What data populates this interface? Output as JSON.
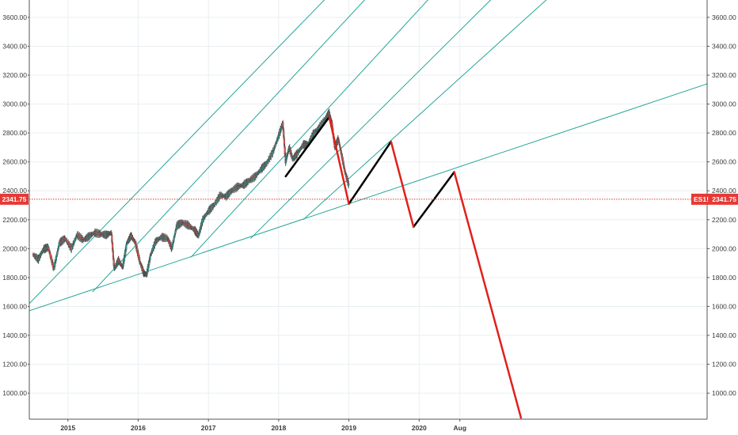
{
  "chart_data": {
    "type": "line",
    "title": "",
    "symbol": "ES1!",
    "last_price": "2341.75",
    "price_tag_left": "2341.75",
    "price_tag_right": "2341.75",
    "ylim": [
      820,
      3720
    ],
    "xlim": [
      2014.45,
      2024.1
    ],
    "y_ticks": [
      "1000.00",
      "1200.00",
      "1400.00",
      "1600.00",
      "1800.00",
      "2000.00",
      "2200.00",
      "2400.00",
      "2600.00",
      "2800.00",
      "3000.00",
      "3200.00",
      "3400.00",
      "3600.00"
    ],
    "x_ticks": [
      {
        "label": "2015",
        "x": 2015.0
      },
      {
        "label": "2016",
        "x": 2016.0
      },
      {
        "label": "2017",
        "x": 2017.0
      },
      {
        "label": "2018",
        "x": 2018.0
      },
      {
        "label": "2019",
        "x": 2019.0
      },
      {
        "label": "2020",
        "x": 2020.0
      },
      {
        "label": "Aug",
        "x": 2020.58
      }
    ],
    "grid": true,
    "colors": {
      "up": "#26a69a",
      "down": "#ef5350",
      "fan": "#26a69a",
      "projection_down": "#e0201b",
      "projection_up": "#000000",
      "price_line": "#e53935",
      "grid": "#e9eff2"
    },
    "price_series": {
      "name": "ES1!",
      "points": [
        [
          2014.5,
          1960
        ],
        [
          2014.58,
          1925
        ],
        [
          2014.65,
          1995
        ],
        [
          2014.72,
          2010
        ],
        [
          2014.8,
          1860
        ],
        [
          2014.88,
          2040
        ],
        [
          2014.96,
          2070
        ],
        [
          2015.05,
          2000
        ],
        [
          2015.13,
          2095
        ],
        [
          2015.22,
          2060
        ],
        [
          2015.3,
          2085
        ],
        [
          2015.38,
          2110
        ],
        [
          2015.47,
          2100
        ],
        [
          2015.55,
          2095
        ],
        [
          2015.62,
          2110
        ],
        [
          2015.66,
          1860
        ],
        [
          2015.72,
          1920
        ],
        [
          2015.78,
          1870
        ],
        [
          2015.84,
          2040
        ],
        [
          2015.9,
          2090
        ],
        [
          2015.96,
          2040
        ],
        [
          2016.03,
          1900
        ],
        [
          2016.08,
          1830
        ],
        [
          2016.12,
          1820
        ],
        [
          2016.18,
          1960
        ],
        [
          2016.25,
          2050
        ],
        [
          2016.33,
          2080
        ],
        [
          2016.42,
          2070
        ],
        [
          2016.48,
          2000
        ],
        [
          2016.55,
          2160
        ],
        [
          2016.63,
          2180
        ],
        [
          2016.72,
          2160
        ],
        [
          2016.8,
          2130
        ],
        [
          2016.86,
          2090
        ],
        [
          2016.92,
          2200
        ],
        [
          2017.0,
          2260
        ],
        [
          2017.08,
          2300
        ],
        [
          2017.17,
          2370
        ],
        [
          2017.25,
          2360
        ],
        [
          2017.33,
          2400
        ],
        [
          2017.42,
          2430
        ],
        [
          2017.5,
          2440
        ],
        [
          2017.58,
          2470
        ],
        [
          2017.67,
          2500
        ],
        [
          2017.75,
          2550
        ],
        [
          2017.83,
          2590
        ],
        [
          2017.92,
          2670
        ],
        [
          2018.0,
          2780
        ],
        [
          2018.06,
          2870
        ],
        [
          2018.1,
          2600
        ],
        [
          2018.15,
          2700
        ],
        [
          2018.2,
          2620
        ],
        [
          2018.27,
          2660
        ],
        [
          2018.35,
          2720
        ],
        [
          2018.42,
          2720
        ],
        [
          2018.5,
          2800
        ],
        [
          2018.58,
          2840
        ],
        [
          2018.67,
          2900
        ],
        [
          2018.72,
          2940
        ],
        [
          2018.76,
          2860
        ],
        [
          2018.8,
          2700
        ],
        [
          2018.85,
          2760
        ],
        [
          2018.9,
          2640
        ],
        [
          2018.95,
          2520
        ],
        [
          2019.0,
          2440
        ]
      ]
    },
    "fan_lines": [
      {
        "from": [
          2014.45,
          1570
        ],
        "to": [
          2024.1,
          3140
        ]
      },
      {
        "from": [
          2014.45,
          1620
        ],
        "to": [
          2018.73,
          3760
        ]
      },
      {
        "from": [
          2015.35,
          1700
        ],
        "to": [
          2019.3,
          3760
        ]
      },
      {
        "from": [
          2016.75,
          1940
        ],
        "to": [
          2020.2,
          3760
        ]
      },
      {
        "from": [
          2018.35,
          2200
        ],
        "to": [
          2021.9,
          3760
        ]
      },
      {
        "from": [
          2017.6,
          2070
        ],
        "to": [
          2021.1,
          3760
        ]
      }
    ],
    "projection_up_segments": [
      {
        "from": [
          2018.1,
          2500
        ],
        "to": [
          2018.72,
          2910
        ]
      },
      {
        "from": [
          2019.0,
          2310
        ],
        "to": [
          2019.6,
          2740
        ]
      },
      {
        "from": [
          2019.92,
          2150
        ],
        "to": [
          2020.5,
          2530
        ]
      }
    ],
    "projection_down_segments": [
      {
        "from": [
          2018.72,
          2910
        ],
        "to": [
          2019.0,
          2310
        ]
      },
      {
        "from": [
          2019.6,
          2740
        ],
        "to": [
          2019.92,
          2150
        ]
      },
      {
        "from": [
          2020.5,
          2530
        ],
        "to": [
          2021.45,
          830
        ]
      }
    ]
  }
}
